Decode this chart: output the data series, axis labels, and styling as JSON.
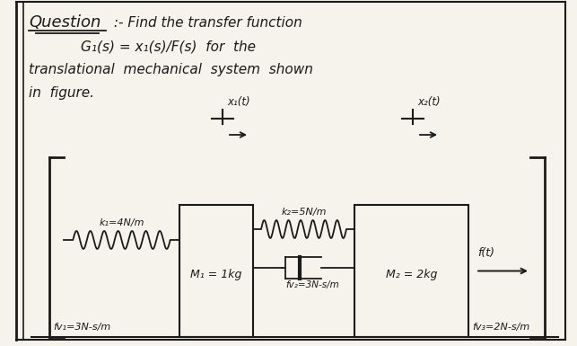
{
  "bg_color": "#f5f3ec",
  "border_color": "#1a1a1a",
  "k1_label": "k₁=4N/m",
  "k2_label": "k₂=5N/m",
  "fv1_label": "fv₁=3N-s/m",
  "fv2_label": "fv₂=3N-s/m",
  "fv3_label": "fv₃=2N-s/m",
  "M1_label": "M₁ = 1kg",
  "M2_label": "M₂ = 2kg",
  "x1_label": "x₁(t)",
  "x2_label": "x₂(t)",
  "F_label": "f(t)",
  "line1_a": "Question",
  "line1_b": " :- Find the transfer function",
  "line2": "G₁(s) = x₁(s)/F(s)  for  the",
  "line3": "translational  mechanical  system  shown",
  "line4": "in  figure."
}
